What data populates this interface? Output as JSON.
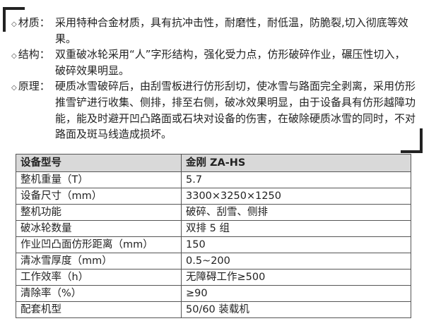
{
  "features": [
    {
      "bullet": "◇",
      "label": "材质：",
      "text": "采用特种合金材质，具有抗冲击性，耐磨性，耐低温，防脆裂,切入彻底等效果。"
    },
    {
      "bullet": "◇",
      "label": "结构：",
      "text": "双重破冰轮采用“人”字形结构，强化受力点，仿形破碎作业，碾压性切入，破碎效果明显。"
    },
    {
      "bullet": "◇",
      "label": "原理：",
      "text": "硬质冰雪破碎后，由刮雪板进行仿形刮切，使冰雪与路面完全剥离，采用仿形推雪铲进行收集、侧排，排至右侧，破冰效果明显，由于设备具有仿形越障功能，能及时避开凹凸路面或石块对设备的伤害，在破除硬质冰雪的同时，不对路面及斑马线造成损坏。"
    }
  ],
  "table": {
    "header": [
      "设备型号",
      "金刚 ZA-HS"
    ],
    "rows": [
      [
        "整机重量（T）",
        "5.7"
      ],
      [
        "设备尺寸（mm）",
        "3300×3250×1250"
      ],
      [
        "整机功能",
        "破碎、刮雪、侧排"
      ],
      [
        "破冰轮数量",
        "双排 5 组"
      ],
      [
        "作业凹凸面仿形距离（mm）",
        "150"
      ],
      [
        "清冰雪厚度（mm）",
        "0.5~200"
      ],
      [
        "工作效率（h）",
        "无障碍工作≥500"
      ],
      [
        "清除率（%）",
        "≥90"
      ],
      [
        "配套机型",
        "50/60 装载机"
      ]
    ]
  }
}
